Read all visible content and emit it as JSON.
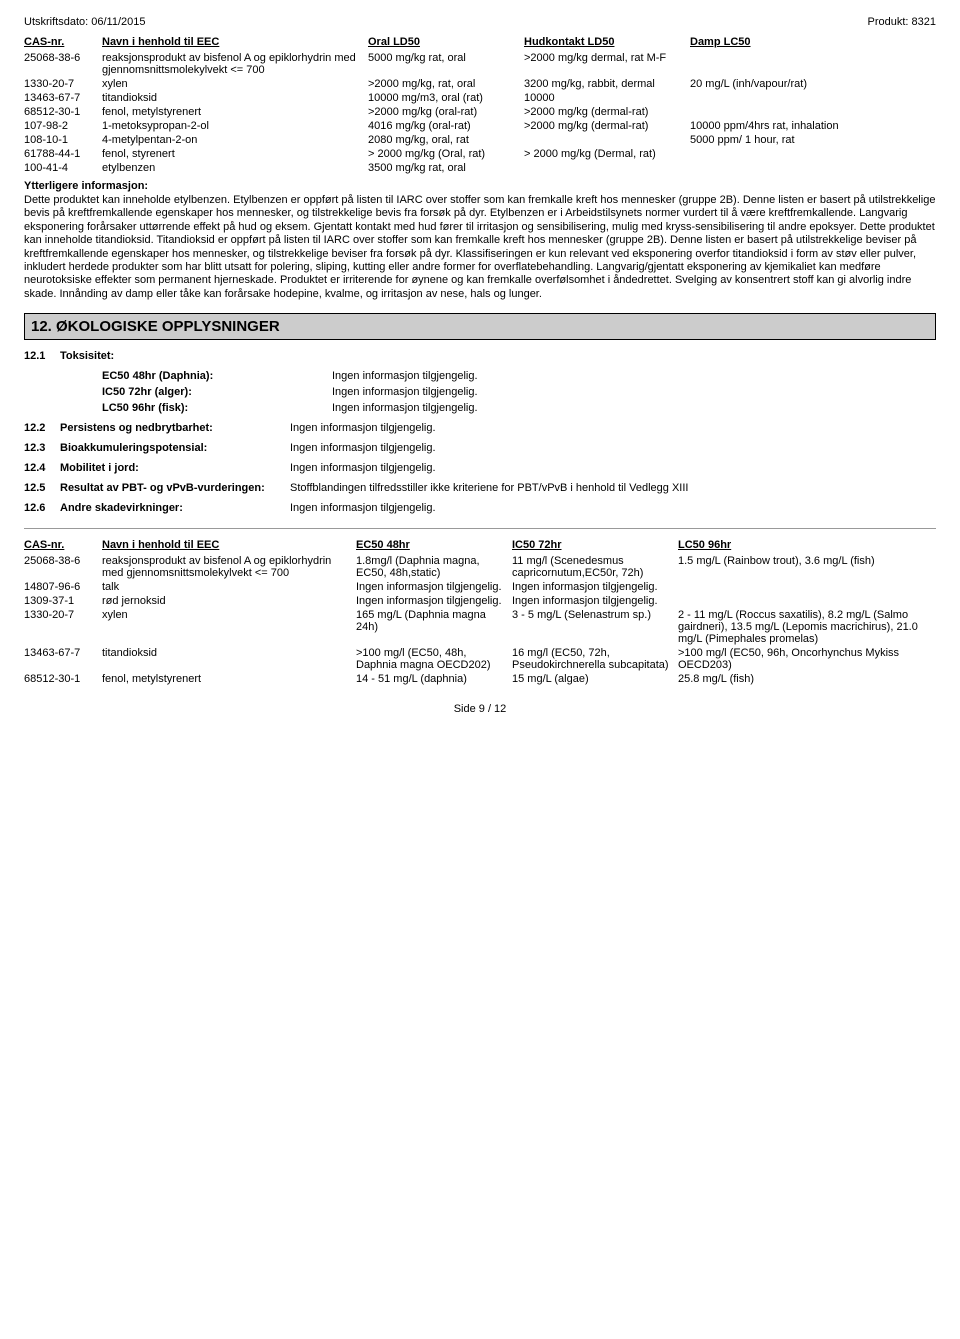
{
  "meta": {
    "print_date": "Utskriftsdato:  06/11/2015",
    "product": "Produkt:  8321",
    "footer": "Side 9 / 12"
  },
  "tox_table": {
    "headers": {
      "cas": "CAS-nr.",
      "name": "Navn i henhold til EEC",
      "oral": "Oral LD50",
      "hud": "Hudkontakt LD50",
      "damp": "Damp LC50"
    },
    "rows": [
      {
        "cas": "25068-38-6",
        "name": "reaksjonsprodukt av bisfenol A og epiklorhydrin med gjennomsnittsmolekylvekt <= 700",
        "oral": "5000 mg/kg rat, oral",
        "hud": ">2000 mg/kg dermal, rat M-F",
        "damp": ""
      },
      {
        "cas": "1330-20-7",
        "name": "xylen",
        "oral": ">2000 mg/kg, rat, oral",
        "hud": "3200 mg/kg, rabbit, dermal",
        "damp": "20 mg/L (inh/vapour/rat)"
      },
      {
        "cas": "13463-67-7",
        "name": "titandioksid",
        "oral": "10000 mg/m3, oral (rat)",
        "hud": "10000",
        "damp": ""
      },
      {
        "cas": "68512-30-1",
        "name": "fenol, metylstyrenert",
        "oral": ">2000 mg/kg (oral-rat)",
        "hud": ">2000 mg/kg (dermal-rat)",
        "damp": ""
      },
      {
        "cas": "107-98-2",
        "name": "1-metoksypropan-2-ol",
        "oral": "4016 mg/kg (oral-rat)",
        "hud": ">2000 mg/kg (dermal-rat)",
        "damp": "10000 ppm/4hrs rat, inhalation"
      },
      {
        "cas": "108-10-1",
        "name": "4-metylpentan-2-on",
        "oral": "2080 mg/kg, oral, rat",
        "hud": "",
        "damp": "5000 ppm/ 1 hour, rat"
      },
      {
        "cas": "61788-44-1",
        "name": "fenol, styrenert",
        "oral": "> 2000 mg/kg (Oral, rat)",
        "hud": "> 2000 mg/kg (Dermal, rat)",
        "damp": ""
      },
      {
        "cas": "100-41-4",
        "name": "etylbenzen",
        "oral": "3500 mg/kg rat, oral",
        "hud": "",
        "damp": ""
      }
    ]
  },
  "further_info": {
    "heading": "Ytterligere informasjon:",
    "text": "Dette produktet kan inneholde etylbenzen. Etylbenzen er oppført på listen til IARC over stoffer som kan fremkalle kreft hos mennesker (gruppe 2B). Denne listen er basert på utilstrekkelige bevis på kreftfremkallende egenskaper hos mennesker, og tilstrekkelige bevis fra forsøk på dyr. Etylbenzen er i Arbeidstilsynets normer vurdert til å være kreftfremkallende. Langvarig eksponering forårsaker uttørrende effekt på hud og eksem. Gjentatt kontakt med hud fører til irritasjon og sensibilisering, mulig med kryss-sensibilisering til andre epoksyer. Dette produktet kan inneholde titandioksid. Titandioksid er oppført på listen til IARC over stoffer som kan fremkalle kreft hos mennesker (gruppe 2B). Denne listen er basert på utilstrekkelige beviser på kreftfremkallende egenskaper hos mennesker, og tilstrekkelige beviser fra forsøk på dyr. Klassifiseringen er kun relevant ved eksponering overfor titandioksid i form av støv eller pulver, inkludert herdede produkter som har blitt utsatt for polering, sliping, kutting eller andre former for overflatebehandling. Langvarig/gjentatt eksponering av kjemikaliet kan medføre neurotoksiske effekter som permanent hjerneskade. Produktet er irriterende for øynene og kan fremkalle overfølsomhet i åndedrettet. Svelging av konsentrert stoff kan gi alvorlig indre skade. Innånding av damp eller tåke kan forårsake hodepine, kvalme, og irritasjon av nese, hals og lunger."
  },
  "section12": {
    "title": "12. ØKOLOGISKE OPPLYSNINGER",
    "s1": {
      "num": "12.1",
      "label": "Toksisitet:",
      "rows": [
        {
          "k": "EC50 48hr (Daphnia):",
          "v": "Ingen informasjon tilgjengelig."
        },
        {
          "k": "IC50 72hr (alger):",
          "v": "Ingen informasjon tilgjengelig."
        },
        {
          "k": "LC50 96hr (fisk):",
          "v": "Ingen informasjon tilgjengelig."
        }
      ]
    },
    "rows": [
      {
        "num": "12.2",
        "label": "Persistens og nedbrytbarhet:",
        "val": "Ingen informasjon tilgjengelig."
      },
      {
        "num": "12.3",
        "label": "Bioakkumuleringspotensial:",
        "val": "Ingen informasjon tilgjengelig."
      },
      {
        "num": "12.4",
        "label": "Mobilitet i jord:",
        "val": "Ingen informasjon tilgjengelig."
      },
      {
        "num": "12.5",
        "label": "Resultat av PBT- og vPvB-vurderingen:",
        "val": "Stoffblandingen tilfredsstiller ikke kriteriene for PBT/vPvB i henhold til Vedlegg XIII"
      },
      {
        "num": "12.6",
        "label": "Andre skadevirkninger:",
        "val": "Ingen informasjon tilgjengelig."
      }
    ]
  },
  "eco_table": {
    "headers": {
      "cas": "CAS-nr.",
      "name": "Navn i henhold til EEC",
      "ec": "EC50 48hr",
      "ic": "IC50 72hr",
      "lc": "LC50 96hr"
    },
    "rows": [
      {
        "cas": "25068-38-6",
        "name": "reaksjonsprodukt av bisfenol A og epiklorhydrin med gjennomsnittsmolekylvekt <= 700",
        "ec": "1.8mg/l (Daphnia magna, EC50, 48h,static)",
        "ic": "11 mg/l (Scenedesmus capricornutum,EC50r, 72h)",
        "lc": "1.5 mg/L (Rainbow trout), 3.6 mg/L (fish)"
      },
      {
        "cas": "14807-96-6",
        "name": "talk",
        "ec": "Ingen informasjon tilgjengelig.",
        "ic": "Ingen informasjon tilgjengelig.",
        "lc": ""
      },
      {
        "cas": "1309-37-1",
        "name": "rød jernoksid",
        "ec": "Ingen informasjon tilgjengelig.",
        "ic": "Ingen informasjon tilgjengelig.",
        "lc": ""
      },
      {
        "cas": "1330-20-7",
        "name": "xylen",
        "ec": "165 mg/L (Daphnia magna 24h)",
        "ic": "3 - 5 mg/L (Selenastrum sp.)",
        "lc": "2 - 11 mg/L (Roccus saxatilis), 8.2 mg/L (Salmo gairdneri), 13.5 mg/L (Lepomis macrichirus), 21.0 mg/L (Pimephales promelas)"
      },
      {
        "cas": "13463-67-7",
        "name": "titandioksid",
        "ec": ">100  mg/l (EC50, 48h, Daphnia magna OECD202)",
        "ic": "16 mg/l (EC50, 72h, Pseudokirchnerella subcapitata)",
        "lc": ">100  mg/l (EC50, 96h, Oncorhynchus Mykiss OECD203)"
      },
      {
        "cas": "68512-30-1",
        "name": "fenol, metylstyrenert",
        "ec": "14 - 51 mg/L (daphnia)",
        "ic": "15 mg/L (algae)",
        "lc": "25.8 mg/L (fish)"
      }
    ]
  }
}
